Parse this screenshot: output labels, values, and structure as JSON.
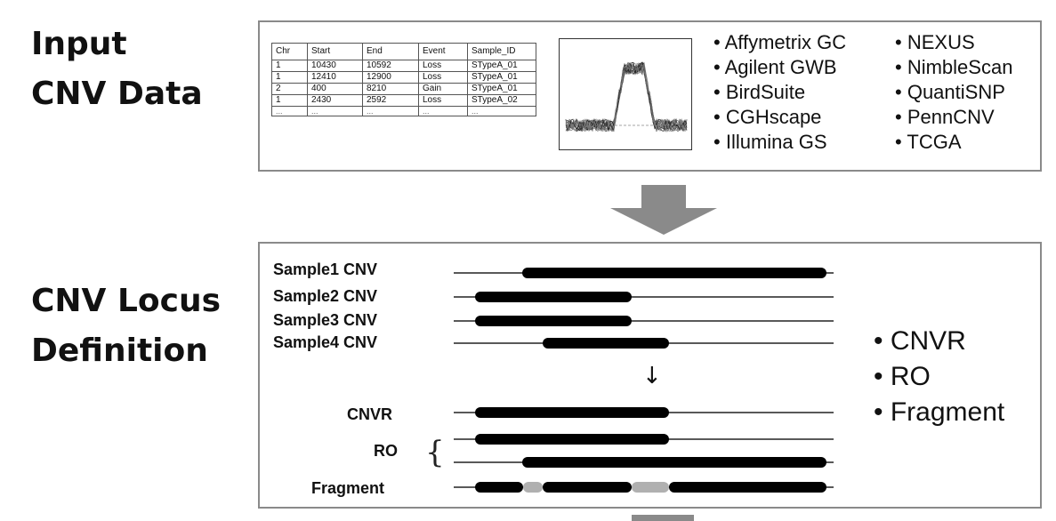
{
  "sections": {
    "input": {
      "line1": "Input",
      "line2": "CNV Data"
    },
    "locus": {
      "line1": "CNV Locus",
      "line2": "Definition"
    }
  },
  "cnv_table": {
    "headers": [
      "Chr",
      "Start",
      "End",
      "Event",
      "Sample_ID"
    ],
    "rows": [
      [
        "1",
        "10430",
        "10592",
        "Loss",
        "STypeA_01"
      ],
      [
        "1",
        "12410",
        "12900",
        "Loss",
        "STypeA_01"
      ],
      [
        "2",
        "400",
        "8210",
        "Gain",
        "STypeA_01"
      ],
      [
        "1",
        "2430",
        "2592",
        "Loss",
        "STypeA_02"
      ],
      [
        "...",
        "...",
        "...",
        "...",
        "..."
      ]
    ]
  },
  "platforms": {
    "col1": [
      "Affymetrix GC",
      "Agilent GWB",
      "BirdSuite",
      "CGHscape",
      "Illumina GS"
    ],
    "col2": [
      "NEXUS",
      "NimbleScan",
      "QuantiSNP",
      "PennCNV",
      "TCGA"
    ]
  },
  "locus_rows": {
    "samples": [
      "Sample1 CNV",
      "Sample2 CNV",
      "Sample3 CNV",
      "Sample4 CNV"
    ],
    "cnvr": "CNVR",
    "ro": "RO",
    "fragment": "Fragment"
  },
  "merge_arrow": "↓",
  "brace": "{",
  "methods": [
    "CNVR",
    "RO",
    "Fragment"
  ],
  "colors": {
    "segment": "#000000",
    "gap": "#b0b0b0",
    "panel_border": "#8a8a8a",
    "arrow": "#8a8a8a"
  }
}
